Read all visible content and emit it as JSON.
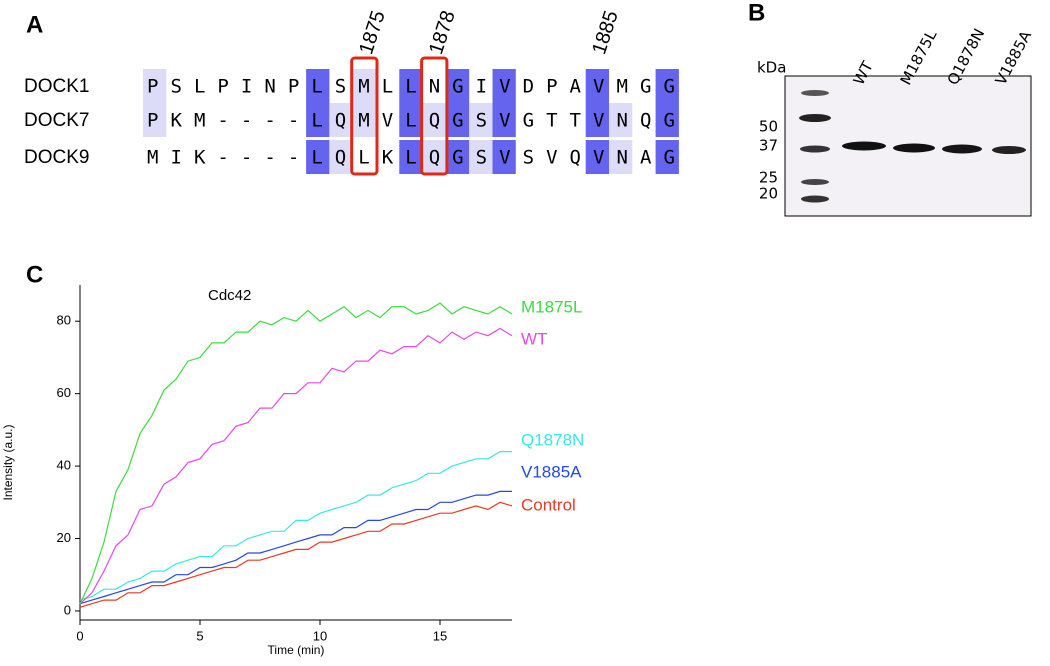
{
  "panel_labels": [
    "A",
    "B",
    "C"
  ],
  "alignment": {
    "positions": [
      "1875",
      "1878",
      "1885"
    ],
    "rows": [
      {
        "name": "DOCK1",
        "sequence": "PSLPINPLSMLLNGIVDPAVMGG"
      },
      {
        "name": "DOCK7",
        "sequence": "PKM----LQMVLQGSVGTTVNQG"
      },
      {
        "name": "DOCK9",
        "sequence": "MIK----LQLKLQGSVSVQVNAG"
      }
    ]
  },
  "gel": {
    "unit": "kDa",
    "markers": [
      "50",
      "37",
      "25",
      "20"
    ],
    "lanes": [
      "WT",
      "M1875L",
      "Q1878N",
      "V1885A"
    ]
  },
  "chart_data": {
    "type": "line",
    "annotation": "Cdc42",
    "x_label": "Time (min)",
    "y_label": "Intensity (a.u.)",
    "x": [
      0,
      0.5,
      1,
      1.5,
      2,
      2.5,
      3,
      3.5,
      4,
      4.5,
      5,
      5.5,
      6,
      6.5,
      7,
      7.5,
      8,
      8.5,
      9,
      9.5,
      10,
      10.5,
      11,
      11.5,
      12,
      12.5,
      13,
      13.5,
      14,
      14.5,
      15,
      15.5,
      16,
      16.5,
      17,
      17.5,
      18
    ],
    "xlim": [
      0,
      18
    ],
    "ylim": [
      -2.5,
      90
    ],
    "xticks": [
      0,
      5,
      10,
      15
    ],
    "yticks": [
      0,
      20,
      40,
      60,
      80
    ],
    "series": [
      {
        "name": "M1875L",
        "color": "#3ddc3d",
        "values": [
          2,
          9,
          19,
          33,
          39,
          49,
          54,
          61,
          64,
          69,
          70,
          74,
          74,
          77,
          77,
          80,
          79,
          81,
          80,
          83,
          80,
          82,
          84,
          81,
          83,
          81,
          84,
          84,
          82,
          83,
          85,
          82,
          84,
          83,
          82,
          84,
          82
        ]
      },
      {
        "name": "WT",
        "color": "#e848e8",
        "values": [
          2,
          5,
          11,
          18,
          21,
          28,
          29,
          35,
          37,
          41,
          42,
          46,
          47,
          51,
          52,
          56,
          56,
          60,
          60,
          63,
          63,
          67,
          66,
          69,
          69,
          72,
          71,
          73,
          73,
          76,
          74,
          77,
          75,
          77,
          76,
          78,
          76
        ]
      },
      {
        "name": "Q1878N",
        "color": "#38e8e8",
        "values": [
          3,
          4,
          6,
          6,
          8,
          9,
          11,
          11,
          13,
          14,
          15,
          15,
          18,
          18,
          20,
          21,
          22,
          22,
          25,
          25,
          27,
          28,
          29,
          30,
          32,
          32,
          34,
          35,
          36,
          38,
          38,
          40,
          41,
          42,
          42,
          44,
          44
        ]
      },
      {
        "name": "V1885A",
        "color": "#2448e8",
        "values": [
          2,
          3,
          4,
          5,
          6,
          7,
          8,
          8,
          10,
          10,
          12,
          12,
          13,
          14,
          16,
          16,
          17,
          18,
          19,
          20,
          21,
          21,
          23,
          23,
          25,
          25,
          26,
          27,
          28,
          28,
          30,
          30,
          31,
          32,
          32,
          33,
          33
        ]
      },
      {
        "name": "Control",
        "color": "#e83a26",
        "values": [
          1,
          2,
          3,
          3,
          5,
          5,
          7,
          7,
          8,
          9,
          10,
          11,
          12,
          12,
          14,
          14,
          15,
          16,
          17,
          17,
          19,
          19,
          20,
          21,
          22,
          22,
          24,
          24,
          25,
          26,
          27,
          27,
          28,
          29,
          28,
          30,
          29
        ]
      }
    ]
  }
}
